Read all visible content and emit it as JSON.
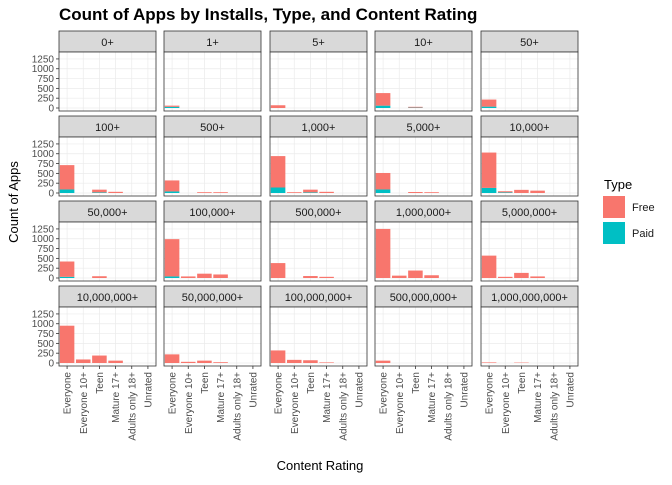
{
  "chart_data": {
    "type": "bar",
    "title": "Count of Apps by Installs, Type, and Content Rating",
    "xlabel": "Content Rating",
    "ylabel": "Count of Apps",
    "categories": [
      "Everyone",
      "Everyone 10+",
      "Teen",
      "Mature 17+",
      "Adults only 18+",
      "Unrated"
    ],
    "y_ticks": [
      "0",
      "250",
      "500",
      "750",
      "1000",
      "1250"
    ],
    "ylim": [
      0,
      1350
    ],
    "legend": {
      "title": "Type",
      "position": "right",
      "items": [
        {
          "label": "Free",
          "color": "#F8766D"
        },
        {
          "label": "Paid",
          "color": "#00BFC4"
        }
      ]
    },
    "colors": {
      "Free": "#F8766D",
      "Paid": "#00BFC4",
      "strip_bg": "#d9d9d9",
      "grid": "#ebebeb"
    },
    "panels": [
      {
        "label": "0+",
        "free": [
          0,
          0,
          0,
          0,
          0,
          0
        ],
        "paid": [
          0,
          0,
          0,
          0,
          0,
          0
        ]
      },
      {
        "label": "1+",
        "free": [
          30,
          0,
          0,
          0,
          0,
          0
        ],
        "paid": [
          30,
          0,
          0,
          0,
          0,
          0
        ]
      },
      {
        "label": "5+",
        "free": [
          70,
          0,
          0,
          0,
          0,
          0
        ],
        "paid": [
          0,
          0,
          0,
          0,
          0,
          0
        ]
      },
      {
        "label": "10+",
        "free": [
          320,
          0,
          20,
          0,
          0,
          0
        ],
        "paid": [
          60,
          0,
          10,
          0,
          0,
          0
        ]
      },
      {
        "label": "50+",
        "free": [
          180,
          0,
          0,
          0,
          0,
          0
        ],
        "paid": [
          35,
          0,
          0,
          0,
          0,
          0
        ]
      },
      {
        "label": "100+",
        "free": [
          620,
          0,
          70,
          30,
          0,
          0
        ],
        "paid": [
          90,
          0,
          15,
          0,
          0,
          0
        ]
      },
      {
        "label": "500+",
        "free": [
          280,
          0,
          20,
          20,
          0,
          0
        ],
        "paid": [
          40,
          0,
          0,
          0,
          0,
          0
        ]
      },
      {
        "label": "1,000+",
        "free": [
          800,
          20,
          70,
          30,
          0,
          0
        ],
        "paid": [
          140,
          0,
          15,
          0,
          0,
          0
        ]
      },
      {
        "label": "5,000+",
        "free": [
          420,
          0,
          25,
          20,
          0,
          0
        ],
        "paid": [
          90,
          0,
          0,
          0,
          0,
          0
        ]
      },
      {
        "label": "10,000+",
        "free": [
          900,
          30,
          80,
          60,
          0,
          0
        ],
        "paid": [
          130,
          15,
          0,
          0,
          0,
          0
        ]
      },
      {
        "label": "50,000+",
        "free": [
          390,
          0,
          45,
          0,
          0,
          0
        ],
        "paid": [
          30,
          0,
          0,
          0,
          0,
          0
        ]
      },
      {
        "label": "100,000+",
        "free": [
          950,
          40,
          110,
          90,
          0,
          0
        ],
        "paid": [
          40,
          0,
          0,
          0,
          0,
          0
        ]
      },
      {
        "label": "500,000+",
        "free": [
          380,
          0,
          50,
          30,
          0,
          0
        ],
        "paid": [
          0,
          0,
          0,
          0,
          0,
          0
        ]
      },
      {
        "label": "1,000,000+",
        "free": [
          1250,
          60,
          190,
          70,
          0,
          0
        ],
        "paid": [
          0,
          0,
          0,
          0,
          0,
          0
        ]
      },
      {
        "label": "5,000,000+",
        "free": [
          570,
          30,
          130,
          40,
          0,
          0
        ],
        "paid": [
          0,
          0,
          0,
          0,
          0,
          0
        ]
      },
      {
        "label": "10,000,000+",
        "free": [
          950,
          90,
          190,
          60,
          0,
          0
        ],
        "paid": [
          0,
          0,
          0,
          0,
          0,
          0
        ]
      },
      {
        "label": "50,000,000+",
        "free": [
          220,
          30,
          60,
          20,
          0,
          0
        ],
        "paid": [
          0,
          0,
          0,
          0,
          0,
          0
        ]
      },
      {
        "label": "100,000,000+",
        "free": [
          320,
          80,
          70,
          15,
          0,
          0
        ],
        "paid": [
          0,
          0,
          0,
          0,
          0,
          0
        ]
      },
      {
        "label": "500,000,000+",
        "free": [
          60,
          0,
          0,
          0,
          0,
          0
        ],
        "paid": [
          0,
          0,
          0,
          0,
          0,
          0
        ]
      },
      {
        "label": "1,000,000,000+",
        "free": [
          15,
          0,
          10,
          0,
          0,
          0
        ],
        "paid": [
          0,
          0,
          0,
          0,
          0,
          0
        ]
      }
    ]
  }
}
